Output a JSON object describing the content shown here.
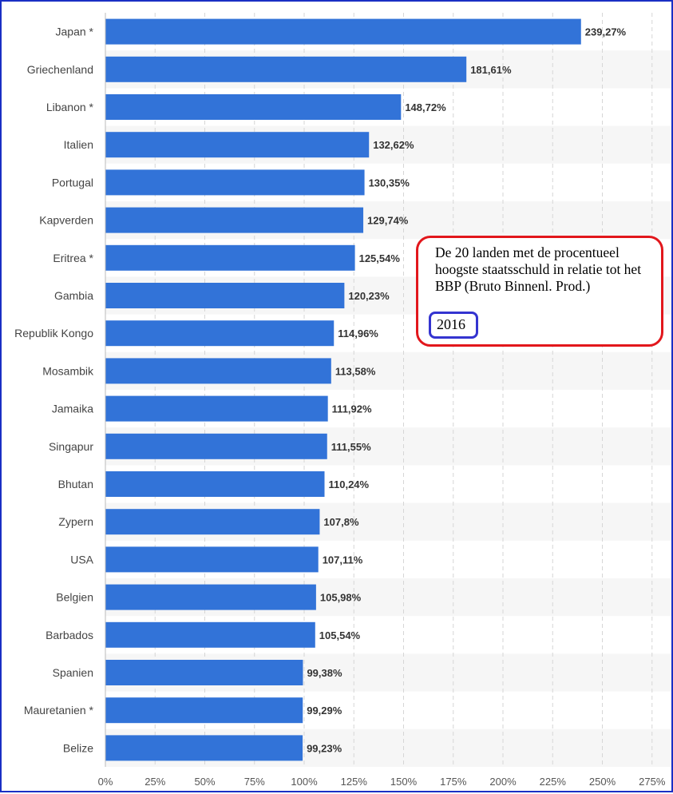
{
  "chart_data": {
    "type": "bar",
    "orientation": "horizontal",
    "categories": [
      "Japan *",
      "Griechenland",
      "Libanon *",
      "Italien",
      "Portugal",
      "Kapverden",
      "Eritrea *",
      "Gambia",
      "Republik Kongo",
      "Mosambik",
      "Jamaika",
      "Singapur",
      "Bhutan",
      "Zypern",
      "USA",
      "Belgien",
      "Barbados",
      "Spanien",
      "Mauretanien *",
      "Belize"
    ],
    "values": [
      239.27,
      181.61,
      148.72,
      132.62,
      130.35,
      129.74,
      125.54,
      120.23,
      114.96,
      113.58,
      111.92,
      111.55,
      110.24,
      107.8,
      107.11,
      105.98,
      105.54,
      99.38,
      99.29,
      99.23
    ],
    "value_labels": [
      "239,27%",
      "181,61%",
      "148,72%",
      "132,62%",
      "130,35%",
      "129,74%",
      "125,54%",
      "120,23%",
      "114,96%",
      "113,58%",
      "111,92%",
      "111,55%",
      "110,24%",
      "107,8%",
      "107,11%",
      "105,98%",
      "105,54%",
      "99,38%",
      "99,29%",
      "99,23%"
    ],
    "x_ticks": [
      0,
      25,
      50,
      75,
      100,
      125,
      150,
      175,
      200,
      225,
      250,
      275
    ],
    "x_tick_labels": [
      "0%",
      "25%",
      "50%",
      "75%",
      "100%",
      "125%",
      "150%",
      "175%",
      "200%",
      "225%",
      "250%",
      "275%"
    ],
    "xlim": [
      0,
      275
    ],
    "grid": "vertical dashed",
    "bar_color": "#3273d8",
    "title": "",
    "xlabel": "",
    "ylabel": ""
  },
  "annotation": {
    "text": "De 20 landen met de  procentueel hoogste staatsschuld in relatie tot het BBP (Bruto Binnenl. Prod.)",
    "year": "2016",
    "border_color": "#e2171c",
    "year_border_color": "#3434d0"
  }
}
